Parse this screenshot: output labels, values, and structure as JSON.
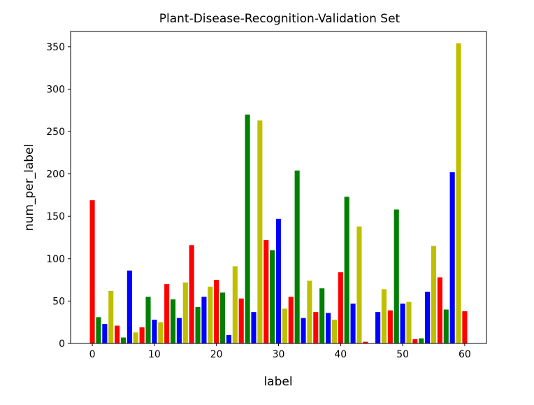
{
  "chart_data": {
    "type": "bar",
    "title": "Plant-Disease-Recognition-Validation Set",
    "xlabel": "label",
    "ylabel": "num_per_label",
    "xlim": [
      -3.5,
      63.5
    ],
    "ylim": [
      0,
      368
    ],
    "xticks": [
      0,
      10,
      20,
      30,
      40,
      50,
      60
    ],
    "yticks": [
      0,
      50,
      100,
      150,
      200,
      250,
      300,
      350
    ],
    "grid": false,
    "color_cycle": [
      "#ff0000",
      "#008000",
      "#0000ff",
      "#bfbf00"
    ],
    "x": [
      0,
      1,
      2,
      3,
      4,
      5,
      6,
      7,
      8,
      9,
      10,
      11,
      12,
      13,
      14,
      15,
      16,
      17,
      18,
      19,
      20,
      21,
      22,
      23,
      24,
      25,
      26,
      27,
      28,
      29,
      30,
      31,
      32,
      33,
      34,
      35,
      36,
      37,
      38,
      39,
      40,
      41,
      42,
      43,
      44,
      45,
      46,
      47,
      48,
      49,
      50,
      51,
      52,
      53,
      54,
      55,
      56,
      57,
      58,
      59,
      60
    ],
    "values": [
      169,
      31,
      23,
      62,
      21,
      7,
      86,
      13,
      19,
      55,
      28,
      25,
      70,
      52,
      30,
      72,
      116,
      43,
      55,
      67,
      75,
      60,
      10,
      91,
      53,
      270,
      37,
      263,
      122,
      110,
      147,
      41,
      55,
      204,
      30,
      74,
      37,
      65,
      36,
      28,
      84,
      173,
      47,
      138,
      2,
      0,
      37,
      64,
      39,
      158,
      47,
      49,
      5,
      6,
      61,
      115,
      78,
      40,
      202,
      354,
      38
    ]
  }
}
